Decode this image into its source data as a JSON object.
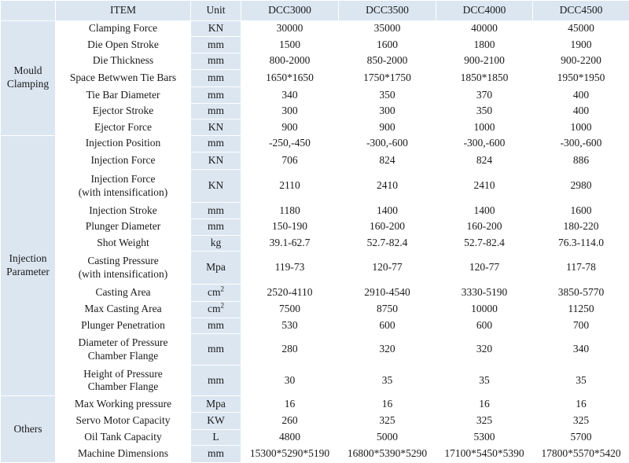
{
  "header": {
    "item": "ITEM",
    "unit": "Unit",
    "models": [
      "DCC3000",
      "DCC3500",
      "DCC4000",
      "DCC4500"
    ]
  },
  "groups": {
    "mould": "Mould Clamping",
    "injection": "Injection Parameter",
    "others": "Others"
  },
  "rows": [
    {
      "item": "Clamping Force",
      "unit": "KN",
      "values": [
        "30000",
        "35000",
        "40000",
        "45000"
      ]
    },
    {
      "item": "Die Open Stroke",
      "unit": "mm",
      "values": [
        "1500",
        "1600",
        "1800",
        "1900"
      ]
    },
    {
      "item": "Die Thickness",
      "unit": "mm",
      "values": [
        "800-2000",
        "850-2000",
        "900-2100",
        "900-2200"
      ]
    },
    {
      "item": "Space Betwwen Tie Bars",
      "unit": "mm",
      "values": [
        "1650*1650",
        "1750*1750",
        "1850*1850",
        "1950*1950"
      ]
    },
    {
      "item": "Tie Bar Diameter",
      "unit": "mm",
      "values": [
        "340",
        "350",
        "370",
        "400"
      ]
    },
    {
      "item": "Ejector Stroke",
      "unit": "mm",
      "values": [
        "300",
        "300",
        "350",
        "400"
      ]
    },
    {
      "item": "Ejector Force",
      "unit": "KN",
      "values": [
        "900",
        "900",
        "1000",
        "1000"
      ]
    },
    {
      "item": "Injection Position",
      "unit": "mm",
      "values": [
        "-250,-450",
        "-300,-600",
        "-300,-600",
        "-300,-600"
      ]
    },
    {
      "item": "Injection Force",
      "unit": "KN",
      "values": [
        "706",
        "824",
        "824",
        "886"
      ]
    },
    {
      "item": "Injection Force",
      "item2": "(with intensification)",
      "unit": "KN",
      "values": [
        "2110",
        "2410",
        "2410",
        "2980"
      ]
    },
    {
      "item": "Injection Stroke",
      "unit": "mm",
      "values": [
        "1180",
        "1400",
        "1400",
        "1600"
      ]
    },
    {
      "item": "Plunger Diameter",
      "unit": "mm",
      "values": [
        "150-190",
        "160-200",
        "160-200",
        "180-220"
      ]
    },
    {
      "item": "Shot Weight",
      "unit": "kg",
      "values": [
        "39.1-62.7",
        "52.7-82.4",
        "52.7-82.4",
        "76.3-114.0"
      ]
    },
    {
      "item": "Casting Pressure",
      "item2": "(with intensification)",
      "unit": "Mpa",
      "values": [
        "119-73",
        "120-77",
        "120-77",
        "117-78"
      ]
    },
    {
      "item": "Casting Area",
      "unit": "cm",
      "unit_sup": "2",
      "values": [
        "2520-4110",
        "2910-4540",
        "3330-5190",
        "3850-5770"
      ]
    },
    {
      "item": "Max Casting Area",
      "unit": "cm",
      "unit_sup": "2",
      "values": [
        "7500",
        "8750",
        "10000",
        "11250"
      ]
    },
    {
      "item": "Plunger Penetration",
      "unit": "mm",
      "values": [
        "530",
        "600",
        "600",
        "700"
      ]
    },
    {
      "item": "Diameter of Pressure",
      "item2": "Chamber Flange",
      "unit": "mm",
      "values": [
        "280",
        "320",
        "320",
        "340"
      ]
    },
    {
      "item": "Height of Pressure",
      "item2": "Chamber Flange",
      "unit": "mm",
      "values": [
        "30",
        "35",
        "35",
        "35"
      ]
    },
    {
      "item": "Max Working pressure",
      "unit": "Mpa",
      "values": [
        "16",
        "16",
        "16",
        "16"
      ]
    },
    {
      "item": "Servo Motor Capacity",
      "unit": "KW",
      "values": [
        "260",
        "325",
        "325",
        "325"
      ]
    },
    {
      "item": "Oil Tank Capacity",
      "unit": "L",
      "values": [
        "4800",
        "5000",
        "5300",
        "5700"
      ]
    },
    {
      "item": "Machine Dimensions",
      "unit": "mm",
      "values": [
        "15300*5290*5190",
        "16800*5390*5290",
        "17100*5450*5390",
        "17800*5570*5420"
      ]
    }
  ]
}
